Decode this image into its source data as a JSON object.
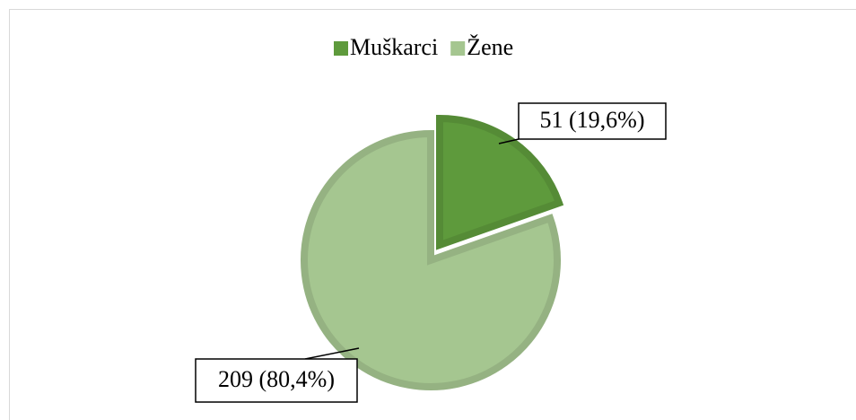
{
  "chart_data": {
    "type": "pie",
    "categories": [
      "Muškarci",
      "Žene"
    ],
    "values": [
      51,
      209
    ],
    "value_labels": [
      "51 (19,6%)",
      "209 (80,4%)"
    ],
    "colors": [
      "#5e9a3c",
      "#a5c690"
    ],
    "legend": "top"
  }
}
